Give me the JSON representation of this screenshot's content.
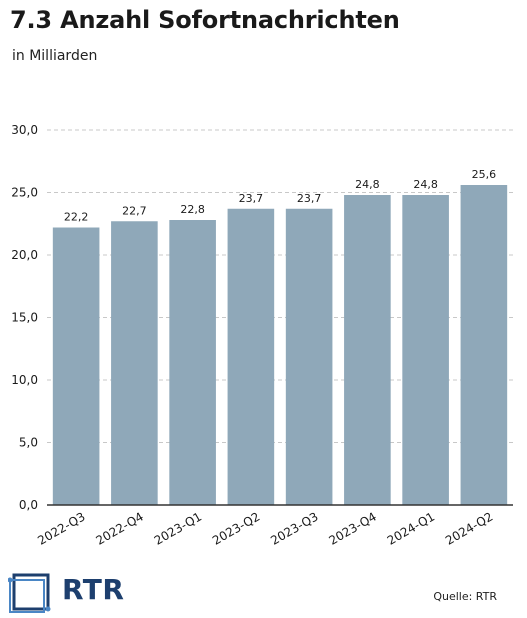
{
  "title": "7.3 Anzahl Sofortnachrichten",
  "subtitle": "in Milliarden",
  "source": "Quelle: RTR",
  "logo_text": "RTR",
  "colors": {
    "bar": "#8fa8b9",
    "grid": "#c8c8c8",
    "axis": "#333333",
    "logo": "#1d3f6e"
  },
  "chart_data": {
    "type": "bar",
    "categories": [
      "2022-Q3",
      "2022-Q4",
      "2023-Q1",
      "2023-Q2",
      "2023-Q3",
      "2023-Q4",
      "2024-Q1",
      "2024-Q2"
    ],
    "values": [
      22.2,
      22.7,
      22.8,
      23.7,
      23.7,
      24.8,
      24.8,
      25.6
    ],
    "value_labels": [
      "22,2",
      "22,7",
      "22,8",
      "23,7",
      "23,7",
      "24,8",
      "24,8",
      "25,6"
    ],
    "ylim": [
      0,
      30
    ],
    "yticks": [
      "0,0",
      "5,0",
      "10,0",
      "15,0",
      "20,0",
      "25,0",
      "30,0"
    ],
    "ytick_values": [
      0,
      5,
      10,
      15,
      20,
      25,
      30
    ],
    "grid": true,
    "grid_style": "dashed"
  }
}
